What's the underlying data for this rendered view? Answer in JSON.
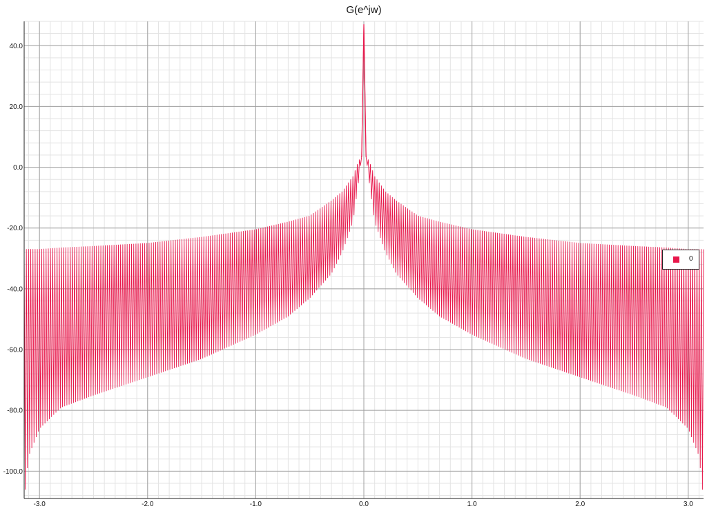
{
  "chart_data": {
    "type": "line",
    "title": "G(e^jw)",
    "xlabel": "",
    "ylabel": "",
    "xlim": [
      -3.1416,
      3.1416
    ],
    "ylim": [
      -109,
      48
    ],
    "x_ticks": [
      "-3.0",
      "-2.0",
      "-1.0",
      "0.0",
      "1.0",
      "2.0",
      "3.0"
    ],
    "y_ticks": [
      "40.0",
      "20.0",
      "0.0",
      "-20.0",
      "-40.0",
      "-60.0",
      "-80.0",
      "-100.0"
    ],
    "grid": true,
    "legend_position": "right",
    "series": [
      {
        "name": "0",
        "color": "#e8174b",
        "envelope_x": [
          0.0,
          0.02,
          0.05,
          0.1,
          0.2,
          0.3,
          0.5,
          0.7,
          1.0,
          1.5,
          2.0,
          2.5,
          2.8,
          3.0,
          3.1,
          3.14
        ],
        "envelope_upper": [
          47,
          3.5,
          2,
          -3,
          -8,
          -11,
          -16,
          -18,
          -20.5,
          -23,
          -25,
          -26,
          -26.5,
          -27,
          -27,
          -27
        ],
        "envelope_lower": [
          47,
          3.5,
          -5,
          -18,
          -28,
          -35,
          -43,
          -49,
          -55,
          -63,
          -69,
          -75,
          -79,
          -86,
          -95,
          -109
        ]
      }
    ]
  }
}
